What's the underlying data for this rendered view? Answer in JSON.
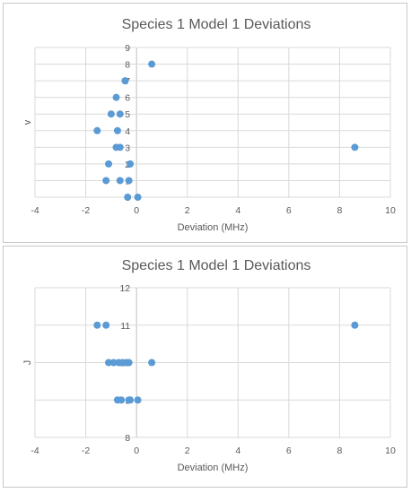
{
  "chart_data": [
    {
      "type": "scatter",
      "title": "Species 1 Model 1 Deviations",
      "xlabel": "Deviation (MHz)",
      "ylabel": "v",
      "xlim": [
        -4,
        10
      ],
      "ylim": [
        0,
        9
      ],
      "xticks": [
        -4,
        -2,
        0,
        2,
        4,
        6,
        8,
        10
      ],
      "yticks": [
        0,
        1,
        2,
        3,
        4,
        5,
        6,
        7,
        8,
        9
      ],
      "grid": true,
      "marker_color": "#5b9bd5",
      "grid_color": "#d9d9d9",
      "points": [
        {
          "x": 0.6,
          "y": 8
        },
        {
          "x": -0.45,
          "y": 7
        },
        {
          "x": -0.8,
          "y": 6
        },
        {
          "x": -1.0,
          "y": 5
        },
        {
          "x": -0.65,
          "y": 5
        },
        {
          "x": -1.55,
          "y": 4
        },
        {
          "x": -0.75,
          "y": 4
        },
        {
          "x": -0.8,
          "y": 3
        },
        {
          "x": -0.65,
          "y": 3
        },
        {
          "x": 8.6,
          "y": 3
        },
        {
          "x": -1.1,
          "y": 2
        },
        {
          "x": -0.25,
          "y": 2
        },
        {
          "x": -1.2,
          "y": 1
        },
        {
          "x": -0.65,
          "y": 1
        },
        {
          "x": -0.3,
          "y": 1
        },
        {
          "x": -0.35,
          "y": 0
        },
        {
          "x": 0.05,
          "y": 0
        }
      ]
    },
    {
      "type": "scatter",
      "title": "Species 1 Model 1 Deviations",
      "xlabel": "Deviation (MHz)",
      "ylabel": "J",
      "xlim": [
        -4,
        10
      ],
      "ylim": [
        8,
        12
      ],
      "xticks": [
        -4,
        -2,
        0,
        2,
        4,
        6,
        8,
        10
      ],
      "yticks": [
        8,
        9,
        10,
        11,
        12
      ],
      "grid": true,
      "marker_color": "#5b9bd5",
      "grid_color": "#d9d9d9",
      "points": [
        {
          "x": -1.55,
          "y": 11
        },
        {
          "x": -1.2,
          "y": 11
        },
        {
          "x": 8.6,
          "y": 11
        },
        {
          "x": -1.1,
          "y": 10
        },
        {
          "x": -0.9,
          "y": 10
        },
        {
          "x": -0.7,
          "y": 10
        },
        {
          "x": -0.55,
          "y": 10
        },
        {
          "x": -0.4,
          "y": 10
        },
        {
          "x": -0.3,
          "y": 10
        },
        {
          "x": 0.6,
          "y": 10
        },
        {
          "x": -0.75,
          "y": 9
        },
        {
          "x": -0.6,
          "y": 9
        },
        {
          "x": -0.3,
          "y": 9
        },
        {
          "x": -0.25,
          "y": 9
        },
        {
          "x": 0.05,
          "y": 9
        }
      ]
    }
  ]
}
